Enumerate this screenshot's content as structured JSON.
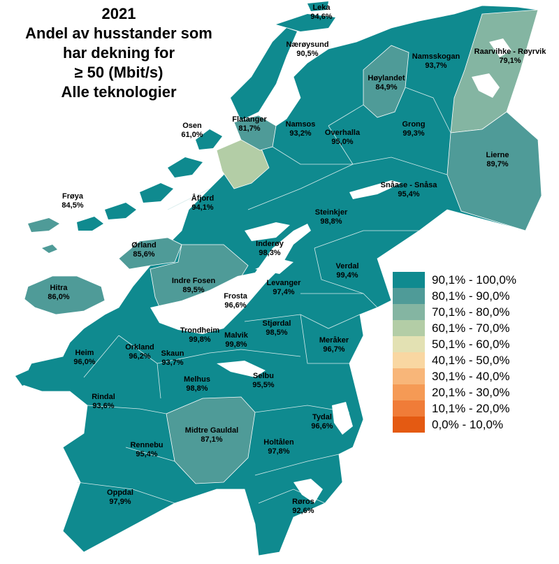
{
  "title": {
    "lines": [
      "2021",
      "Andel av husstander som",
      "har dekning for",
      "≥ 50 (Mbit/s)",
      "Alle teknologier"
    ]
  },
  "legend": [
    {
      "range": "90,1% - 100,0%",
      "color": "#0f8a8f"
    },
    {
      "range": "80,1% - 90,0%",
      "color": "#4f9b98"
    },
    {
      "range": "70,1% - 80,0%",
      "color": "#84b5a2"
    },
    {
      "range": "60,1% - 70,0%",
      "color": "#b3cda6"
    },
    {
      "range": "50,1% - 60,0%",
      "color": "#e3e1b3"
    },
    {
      "range": "40,1% - 50,0%",
      "color": "#f9d7a2"
    },
    {
      "range": "30,1% - 40,0%",
      "color": "#f8b679"
    },
    {
      "range": "20,1% - 30,0%",
      "color": "#f59a55"
    },
    {
      "range": "10,1% - 20,0%",
      "color": "#f07c38"
    },
    {
      "range": "0,0% - 10,0%",
      "color": "#e45a12"
    }
  ],
  "municipalities": [
    {
      "name": "Leka",
      "value": "94,6%",
      "class": 0
    },
    {
      "name": "Nærøysund",
      "value": "90,5%",
      "class": 0
    },
    {
      "name": "Namsskogan",
      "value": "93,7%",
      "class": 0
    },
    {
      "name": "Raarvihke - Røyrvik",
      "value": "79,1%",
      "class": 2
    },
    {
      "name": "Høylandet",
      "value": "84,9%",
      "class": 1
    },
    {
      "name": "Grong",
      "value": "99,3%",
      "class": 0
    },
    {
      "name": "Overhalla",
      "value": "95,0%",
      "class": 0
    },
    {
      "name": "Namsos",
      "value": "93,2%",
      "class": 0
    },
    {
      "name": "Flatanger",
      "value": "81,7%",
      "class": 1
    },
    {
      "name": "Osen",
      "value": "61,0%",
      "class": 3
    },
    {
      "name": "Lierne",
      "value": "89,7%",
      "class": 1
    },
    {
      "name": "Snåase - Snåsa",
      "value": "95,4%",
      "class": 0
    },
    {
      "name": "Frøya",
      "value": "84,5%",
      "class": 1
    },
    {
      "name": "Åfjord",
      "value": "94,1%",
      "class": 0
    },
    {
      "name": "Steinkjer",
      "value": "98,8%",
      "class": 0
    },
    {
      "name": "Ørland",
      "value": "85,6%",
      "class": 1
    },
    {
      "name": "Inderøy",
      "value": "98,3%",
      "class": 0
    },
    {
      "name": "Verdal",
      "value": "99,4%",
      "class": 0
    },
    {
      "name": "Indre Fosen",
      "value": "89,5%",
      "class": 1
    },
    {
      "name": "Levanger",
      "value": "97,4%",
      "class": 0
    },
    {
      "name": "Hitra",
      "value": "86,0%",
      "class": 1
    },
    {
      "name": "Frosta",
      "value": "96,6%",
      "class": 0
    },
    {
      "name": "Trondheim",
      "value": "99,8%",
      "class": 0
    },
    {
      "name": "Malvik",
      "value": "99,8%",
      "class": 0
    },
    {
      "name": "Stjørdal",
      "value": "98,5%",
      "class": 0
    },
    {
      "name": "Meråker",
      "value": "96,7%",
      "class": 0
    },
    {
      "name": "Heim",
      "value": "96,0%",
      "class": 0
    },
    {
      "name": "Orkland",
      "value": "96,2%",
      "class": 0
    },
    {
      "name": "Skaun",
      "value": "93,7%",
      "class": 0
    },
    {
      "name": "Melhus",
      "value": "98,8%",
      "class": 0
    },
    {
      "name": "Selbu",
      "value": "95,5%",
      "class": 0
    },
    {
      "name": "Rindal",
      "value": "93,6%",
      "class": 0
    },
    {
      "name": "Tydal",
      "value": "96,6%",
      "class": 0
    },
    {
      "name": "Midtre Gauldal",
      "value": "87,1%",
      "class": 1
    },
    {
      "name": "Holtålen",
      "value": "97,8%",
      "class": 0
    },
    {
      "name": "Rennebu",
      "value": "95,4%",
      "class": 0
    },
    {
      "name": "Oppdal",
      "value": "97,9%",
      "class": 0
    },
    {
      "name": "Røros",
      "value": "92,6%",
      "class": 0
    }
  ]
}
